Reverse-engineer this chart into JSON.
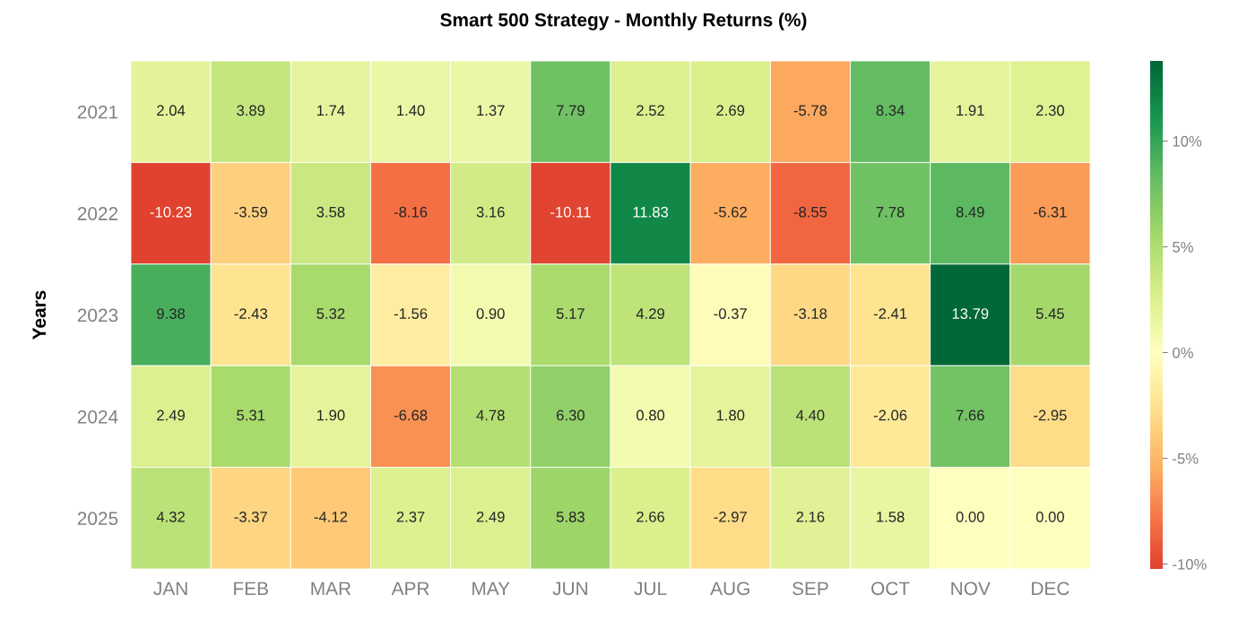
{
  "chart_data": {
    "type": "heatmap",
    "title": "Smart 500 Strategy - Monthly Returns (%)",
    "ylabel": "Years",
    "categories": [
      "JAN",
      "FEB",
      "MAR",
      "APR",
      "MAY",
      "JUN",
      "JUL",
      "AUG",
      "SEP",
      "OCT",
      "NOV",
      "DEC"
    ],
    "y_categories": [
      "2021",
      "2022",
      "2023",
      "2024",
      "2025"
    ],
    "cells": [
      [
        2.04,
        3.89,
        1.74,
        1.4,
        1.37,
        7.79,
        2.52,
        2.69,
        -5.78,
        8.34,
        1.91,
        2.3
      ],
      [
        -10.23,
        -3.59,
        3.58,
        -8.16,
        3.16,
        -10.11,
        11.83,
        -5.62,
        -8.55,
        7.78,
        8.49,
        -6.31
      ],
      [
        9.38,
        -2.43,
        5.32,
        -1.56,
        0.9,
        5.17,
        4.29,
        -0.37,
        -3.18,
        -2.41,
        13.79,
        5.45
      ],
      [
        2.49,
        5.31,
        1.9,
        -6.68,
        4.78,
        6.3,
        0.8,
        1.8,
        4.4,
        -2.06,
        7.66,
        -2.95
      ],
      [
        4.32,
        -3.37,
        -4.12,
        2.37,
        2.49,
        5.83,
        2.66,
        -2.97,
        2.16,
        1.58,
        0.0,
        0.0
      ]
    ],
    "cell_labels": [
      [
        "2.04",
        "3.89",
        "1.74",
        "1.40",
        "1.37",
        "7.79",
        "2.52",
        "2.69",
        "-5.78",
        "8.34",
        "1.91",
        "2.30"
      ],
      [
        "-10.23",
        "-3.59",
        "3.58",
        "-8.16",
        "3.16",
        "-10.11",
        "11.83",
        "-5.62",
        "-8.55",
        "7.78",
        "8.49",
        "-6.31"
      ],
      [
        "9.38",
        "-2.43",
        "5.32",
        "-1.56",
        "0.90",
        "5.17",
        "4.29",
        "-0.37",
        "-3.18",
        "-2.41",
        "13.79",
        "5.45"
      ],
      [
        "2.49",
        "5.31",
        "1.90",
        "-6.68",
        "4.78",
        "6.30",
        "0.80",
        "1.80",
        "4.40",
        "-2.06",
        "7.66",
        "-2.95"
      ],
      [
        "4.32",
        "-3.37",
        "-4.12",
        "2.37",
        "2.49",
        "5.83",
        "2.66",
        "-2.97",
        "2.16",
        "1.58",
        "0.00",
        "0.00"
      ]
    ],
    "clim": [
      -10.23,
      13.79
    ],
    "cticks": [
      {
        "value": -10,
        "label": "-10%"
      },
      {
        "value": -5,
        "label": "-5%"
      },
      {
        "value": 0,
        "label": "0%"
      },
      {
        "value": 5,
        "label": "5%"
      },
      {
        "value": 10,
        "label": "10%"
      }
    ]
  }
}
